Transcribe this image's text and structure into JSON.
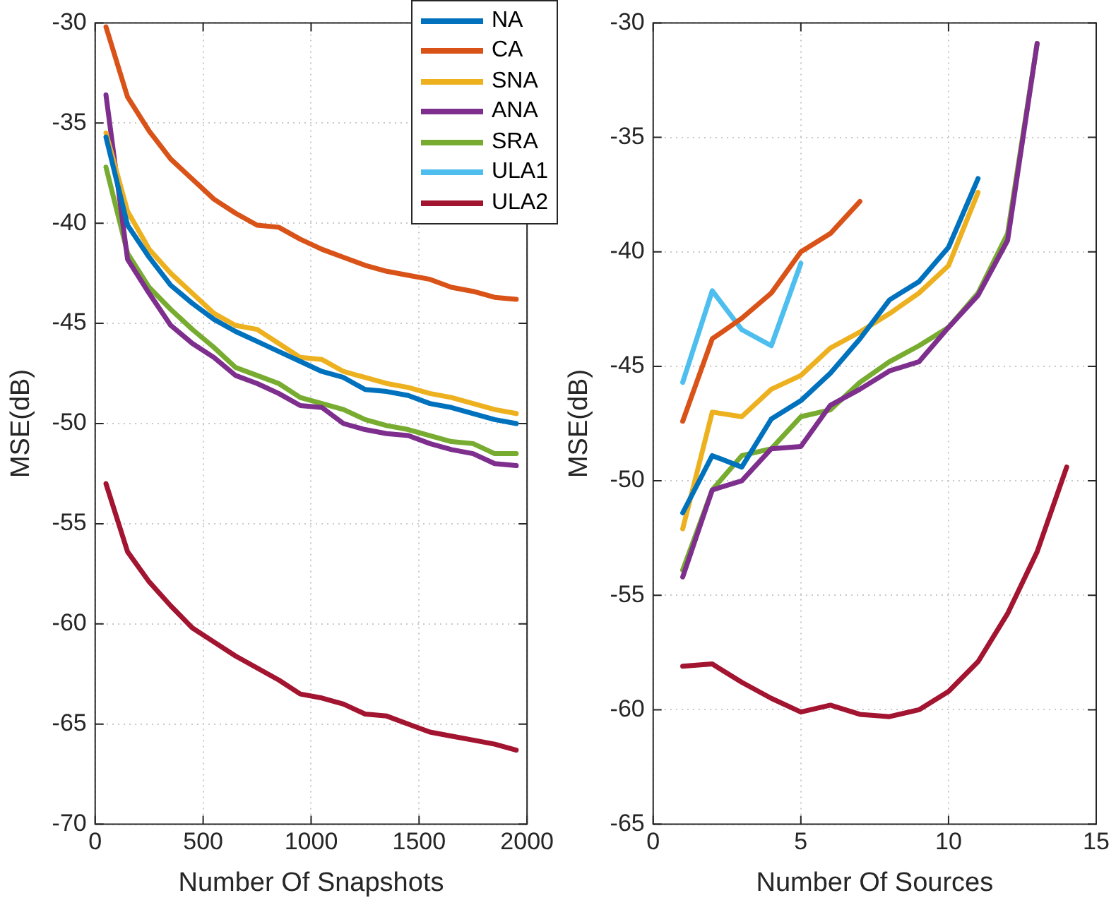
{
  "chart_data": [
    {
      "type": "line",
      "xlabel": "Number Of Snapshots",
      "ylabel": "MSE(dB)",
      "xlim": [
        0,
        2000
      ],
      "xticks": [
        0,
        500,
        1000,
        1500,
        2000
      ],
      "ylim": [
        -70,
        -30
      ],
      "yticks": [
        -70,
        -65,
        -60,
        -55,
        -50,
        -45,
        -40,
        -35,
        -30
      ],
      "grid": true,
      "legend": "top right",
      "line_style": "solid",
      "marker": "none",
      "x": [
        50,
        150,
        250,
        350,
        450,
        550,
        650,
        750,
        850,
        950,
        1050,
        1150,
        1250,
        1350,
        1450,
        1550,
        1650,
        1750,
        1850,
        1950
      ],
      "series": [
        {
          "name": "NA",
          "color": "#0072bd",
          "values": [
            -35.7,
            -40.1,
            -41.7,
            -43.1,
            -44.0,
            -44.8,
            -45.4,
            -45.9,
            -46.4,
            -46.9,
            -47.4,
            -47.7,
            -48.3,
            -48.4,
            -48.6,
            -49.0,
            -49.2,
            -49.5,
            -49.8,
            -50.0
          ]
        },
        {
          "name": "CA",
          "color": "#d95319",
          "values": [
            -30.2,
            -33.7,
            -35.4,
            -36.8,
            -37.8,
            -38.8,
            -39.5,
            -40.1,
            -40.2,
            -40.8,
            -41.3,
            -41.7,
            -42.1,
            -42.4,
            -42.6,
            -42.8,
            -43.2,
            -43.4,
            -43.7,
            -43.8
          ]
        },
        {
          "name": "SNA",
          "color": "#edb120",
          "values": [
            -35.5,
            -39.4,
            -41.3,
            -42.5,
            -43.5,
            -44.5,
            -45.1,
            -45.3,
            -46.0,
            -46.7,
            -46.8,
            -47.4,
            -47.7,
            -48.0,
            -48.2,
            -48.5,
            -48.7,
            -49.0,
            -49.3,
            -49.5
          ]
        },
        {
          "name": "ANA",
          "color": "#7e2f8e",
          "values": [
            -33.6,
            -41.8,
            -43.5,
            -45.1,
            -46.0,
            -46.7,
            -47.6,
            -48.0,
            -48.5,
            -49.1,
            -49.2,
            -50.0,
            -50.3,
            -50.5,
            -50.6,
            -51.0,
            -51.3,
            -51.5,
            -52.0,
            -52.1
          ]
        },
        {
          "name": "SRA",
          "color": "#77ac30",
          "values": [
            -37.2,
            -41.5,
            -43.2,
            -44.3,
            -45.3,
            -46.2,
            -47.2,
            -47.6,
            -48.0,
            -48.7,
            -49.0,
            -49.3,
            -49.8,
            -50.1,
            -50.3,
            -50.6,
            -50.9,
            -51.0,
            -51.5,
            -51.5
          ]
        },
        {
          "name": "ULA1",
          "color": "#4dbeee",
          "values": [
            null,
            null,
            null,
            null,
            null,
            null,
            null,
            null,
            null,
            null,
            null,
            null,
            null,
            null,
            null,
            null,
            null,
            null,
            null,
            null
          ]
        },
        {
          "name": "ULA2",
          "color": "#a2142f",
          "values": [
            -53.0,
            -56.4,
            -57.9,
            -59.1,
            -60.2,
            -60.9,
            -61.6,
            -62.2,
            -62.8,
            -63.5,
            -63.7,
            -64.0,
            -64.5,
            -64.6,
            -65.0,
            -65.4,
            -65.6,
            -65.8,
            -66.0,
            -66.3
          ]
        }
      ]
    },
    {
      "type": "line",
      "xlabel": "Number Of Sources",
      "ylabel": "MSE(dB)",
      "xlim": [
        0,
        15
      ],
      "xticks": [
        0,
        5,
        10,
        15
      ],
      "ylim": [
        -65,
        -30
      ],
      "yticks": [
        -65,
        -60,
        -55,
        -50,
        -45,
        -40,
        -35,
        -30
      ],
      "grid": true,
      "line_style": "solid",
      "marker": "none",
      "series": [
        {
          "color": "#0072bd",
          "x": [
            1,
            2,
            3,
            4,
            5,
            6,
            7,
            8,
            9,
            10,
            11
          ],
          "values": [
            -51.4,
            -48.9,
            -49.4,
            -47.3,
            -46.5,
            -45.3,
            -43.8,
            -42.1,
            -41.3,
            -39.8,
            -36.8
          ]
        },
        {
          "color": "#d95319",
          "x": [
            1,
            2,
            3,
            4,
            5,
            6,
            7
          ],
          "values": [
            -47.4,
            -43.8,
            -42.9,
            -41.8,
            -40.0,
            -39.2,
            -37.8
          ]
        },
        {
          "color": "#edb120",
          "x": [
            1,
            2,
            3,
            4,
            5,
            6,
            7,
            8,
            9,
            10,
            11
          ],
          "values": [
            -52.1,
            -47.0,
            -47.2,
            -46.0,
            -45.4,
            -44.2,
            -43.5,
            -42.7,
            -41.8,
            -40.6,
            -37.4
          ]
        },
        {
          "color": "#7e2f8e",
          "x": [
            1,
            2,
            3,
            4,
            5,
            6,
            7,
            8,
            9,
            10,
            11,
            12,
            13
          ],
          "values": [
            -54.2,
            -50.4,
            -50.0,
            -48.6,
            -48.5,
            -46.7,
            -46.0,
            -45.2,
            -44.8,
            -43.3,
            -41.9,
            -39.5,
            -30.9
          ]
        },
        {
          "color": "#77ac30",
          "x": [
            1,
            2,
            3,
            4,
            5,
            6,
            7,
            8,
            9,
            10,
            11,
            12,
            13
          ],
          "values": [
            -53.9,
            -50.4,
            -48.9,
            -48.6,
            -47.2,
            -46.9,
            -45.7,
            -44.8,
            -44.1,
            -43.3,
            -41.8,
            -39.2,
            -30.9
          ]
        },
        {
          "color": "#4dbeee",
          "x": [
            1,
            2,
            3,
            4,
            5
          ],
          "values": [
            -45.7,
            -41.7,
            -43.4,
            -44.1,
            -40.5
          ]
        },
        {
          "color": "#a2142f",
          "x": [
            1,
            2,
            3,
            4,
            5,
            6,
            7,
            8,
            9,
            10,
            11,
            12,
            13,
            14
          ],
          "values": [
            -58.1,
            -58.0,
            -58.8,
            -59.5,
            -60.1,
            -59.8,
            -60.2,
            -60.3,
            -60.0,
            -59.2,
            -57.9,
            -55.8,
            -53.1,
            -49.4
          ]
        }
      ]
    }
  ]
}
